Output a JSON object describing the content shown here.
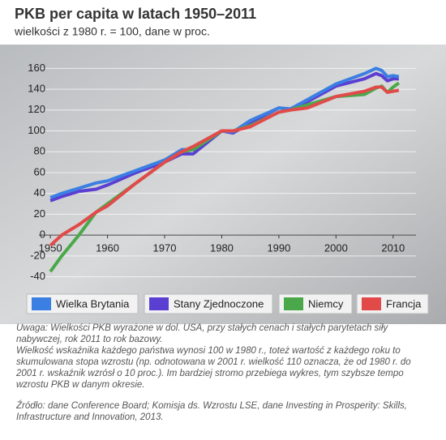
{
  "chart_data": {
    "type": "line",
    "title": "PKB per capita w latach 1950–2011",
    "subtitle": "wielkości z 1980 r. = 100, dane w proc.",
    "x": [
      1950,
      1952,
      1955,
      1958,
      1960,
      1965,
      1970,
      1973,
      1975,
      1980,
      1982,
      1985,
      1990,
      1992,
      1995,
      2000,
      2005,
      2007,
      2008,
      2009,
      2010,
      2011
    ],
    "series": [
      {
        "name": "Wielka Brytania",
        "color": "#3b7fe3",
        "values": [
          36,
          40,
          45,
          50,
          52,
          62,
          72,
          82,
          82,
          100,
          99,
          110,
          122,
          121,
          130,
          145,
          155,
          160,
          158,
          152,
          153,
          152
        ]
      },
      {
        "name": "Stany Zjednoczone",
        "color": "#5b3fd2",
        "values": [
          33,
          37,
          42,
          44,
          48,
          60,
          70,
          78,
          78,
          100,
          98,
          108,
          122,
          121,
          128,
          143,
          150,
          155,
          153,
          148,
          150,
          150
        ]
      },
      {
        "name": "Niemcy",
        "color": "#4aa84a",
        "values": [
          -35,
          -20,
          0,
          22,
          30,
          50,
          70,
          80,
          82,
          100,
          100,
          105,
          118,
          120,
          125,
          133,
          135,
          141,
          143,
          137,
          142,
          146
        ]
      },
      {
        "name": "Francja",
        "color": "#e24a4a",
        "values": [
          -10,
          0,
          10,
          22,
          28,
          50,
          70,
          80,
          85,
          100,
          100,
          104,
          118,
          120,
          122,
          133,
          138,
          142,
          142,
          137,
          138,
          139
        ]
      }
    ],
    "xlim": [
      1948,
      2014
    ],
    "xticks": [
      1950,
      1960,
      1970,
      1980,
      1990,
      2000,
      2010
    ],
    "ylim": [
      -45,
      170
    ],
    "yticks": [
      -40,
      -20,
      0,
      20,
      40,
      60,
      80,
      100,
      120,
      140,
      160
    ],
    "grid": true,
    "notes": [
      "Uwaga: Wielkości PKB wyrażone w dol. USA, przy stałych cenach i stałych parytetach siły nabywczej, rok 2011 to rok bazowy.",
      "Wielkość wskaźnika każdego państwa wynosi 100 w 1980 r., toteż wartość z każdego roku to skumulowana stopa wzrostu (np. odnotowana w 2001 r. wielkość 110 oznacza, że od 1980 r. do 2001 r. wskaźnik wzrósł o 10 proc.). Im bardziej stromo przebiega wykres, tym szybsze tempo wzrostu PKB w danym okresie."
    ],
    "source": "Źródło: dane Conference Board; Komisja ds. Wzrostu LSE, dane Investing in Prosperity: Skills, Infrastructure and Innovation, 2013."
  }
}
